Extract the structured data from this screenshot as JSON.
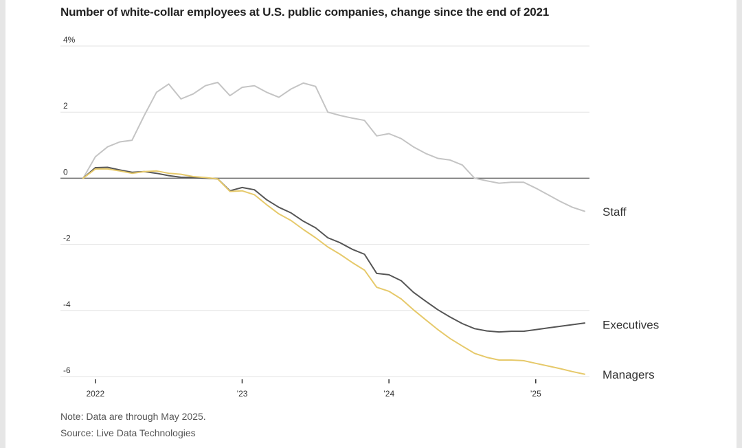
{
  "chart_data": {
    "type": "line",
    "title": "Number of white-collar employees at U.S. public companies, change since the end of 2021",
    "y_unit": "%",
    "ylim": [
      -6,
      4
    ],
    "y_ticks": [
      4,
      2,
      0,
      -2,
      -4,
      -6
    ],
    "y_tick_labels": [
      "4%",
      "2",
      "0",
      "-2",
      "-4",
      "-6"
    ],
    "x_range": [
      "2021-12",
      "2025-05"
    ],
    "x_ticks": [
      {
        "date": "2022-01",
        "label": "2022"
      },
      {
        "date": "2023-01",
        "label": "’23"
      },
      {
        "date": "2024-01",
        "label": "’24"
      },
      {
        "date": "2025-01",
        "label": "’25"
      }
    ],
    "x": [
      "2021-12",
      "2022-01",
      "2022-02",
      "2022-03",
      "2022-04",
      "2022-05",
      "2022-06",
      "2022-07",
      "2022-08",
      "2022-09",
      "2022-10",
      "2022-11",
      "2022-12",
      "2023-01",
      "2023-02",
      "2023-03",
      "2023-04",
      "2023-05",
      "2023-06",
      "2023-07",
      "2023-08",
      "2023-09",
      "2023-10",
      "2023-11",
      "2023-12",
      "2024-01",
      "2024-02",
      "2024-03",
      "2024-04",
      "2024-05",
      "2024-06",
      "2024-07",
      "2024-08",
      "2024-09",
      "2024-10",
      "2024-11",
      "2024-12",
      "2025-01",
      "2025-02",
      "2025-03",
      "2025-04",
      "2025-05"
    ],
    "grid": true,
    "series": [
      {
        "name": "Staff",
        "color": "#c4c4c4",
        "values": [
          0,
          0.65,
          0.95,
          1.1,
          1.15,
          1.9,
          2.6,
          2.85,
          2.4,
          2.55,
          2.8,
          2.9,
          2.5,
          2.75,
          2.8,
          2.6,
          2.45,
          2.7,
          2.88,
          2.78,
          2.0,
          1.9,
          1.82,
          1.75,
          1.28,
          1.35,
          1.2,
          0.95,
          0.75,
          0.6,
          0.55,
          0.4,
          0.0,
          -0.08,
          -0.15,
          -0.12,
          -0.12,
          -0.3,
          -0.5,
          -0.7,
          -0.88,
          -1.0
        ]
      },
      {
        "name": "Executives",
        "color": "#555555",
        "values": [
          0,
          0.32,
          0.33,
          0.25,
          0.18,
          0.2,
          0.15,
          0.08,
          0.03,
          0.02,
          0.0,
          -0.02,
          -0.38,
          -0.28,
          -0.35,
          -0.65,
          -0.88,
          -1.05,
          -1.3,
          -1.5,
          -1.8,
          -1.95,
          -2.15,
          -2.3,
          -2.88,
          -2.92,
          -3.1,
          -3.45,
          -3.72,
          -3.98,
          -4.2,
          -4.4,
          -4.55,
          -4.62,
          -4.65,
          -4.63,
          -4.63,
          -4.58,
          -4.53,
          -4.48,
          -4.43,
          -4.38
        ]
      },
      {
        "name": "Managers",
        "color": "#e6c96a",
        "values": [
          0,
          0.28,
          0.28,
          0.22,
          0.15,
          0.2,
          0.22,
          0.15,
          0.12,
          0.05,
          0.02,
          -0.02,
          -0.4,
          -0.38,
          -0.5,
          -0.8,
          -1.08,
          -1.28,
          -1.55,
          -1.8,
          -2.08,
          -2.3,
          -2.55,
          -2.78,
          -3.3,
          -3.42,
          -3.65,
          -3.98,
          -4.28,
          -4.58,
          -4.85,
          -5.08,
          -5.3,
          -5.42,
          -5.5,
          -5.5,
          -5.52,
          -5.6,
          -5.68,
          -5.76,
          -5.85,
          -5.93
        ]
      }
    ],
    "annotations": {
      "note": "Note: Data are through May 2025.",
      "source": "Source: Live Data Technologies"
    }
  }
}
